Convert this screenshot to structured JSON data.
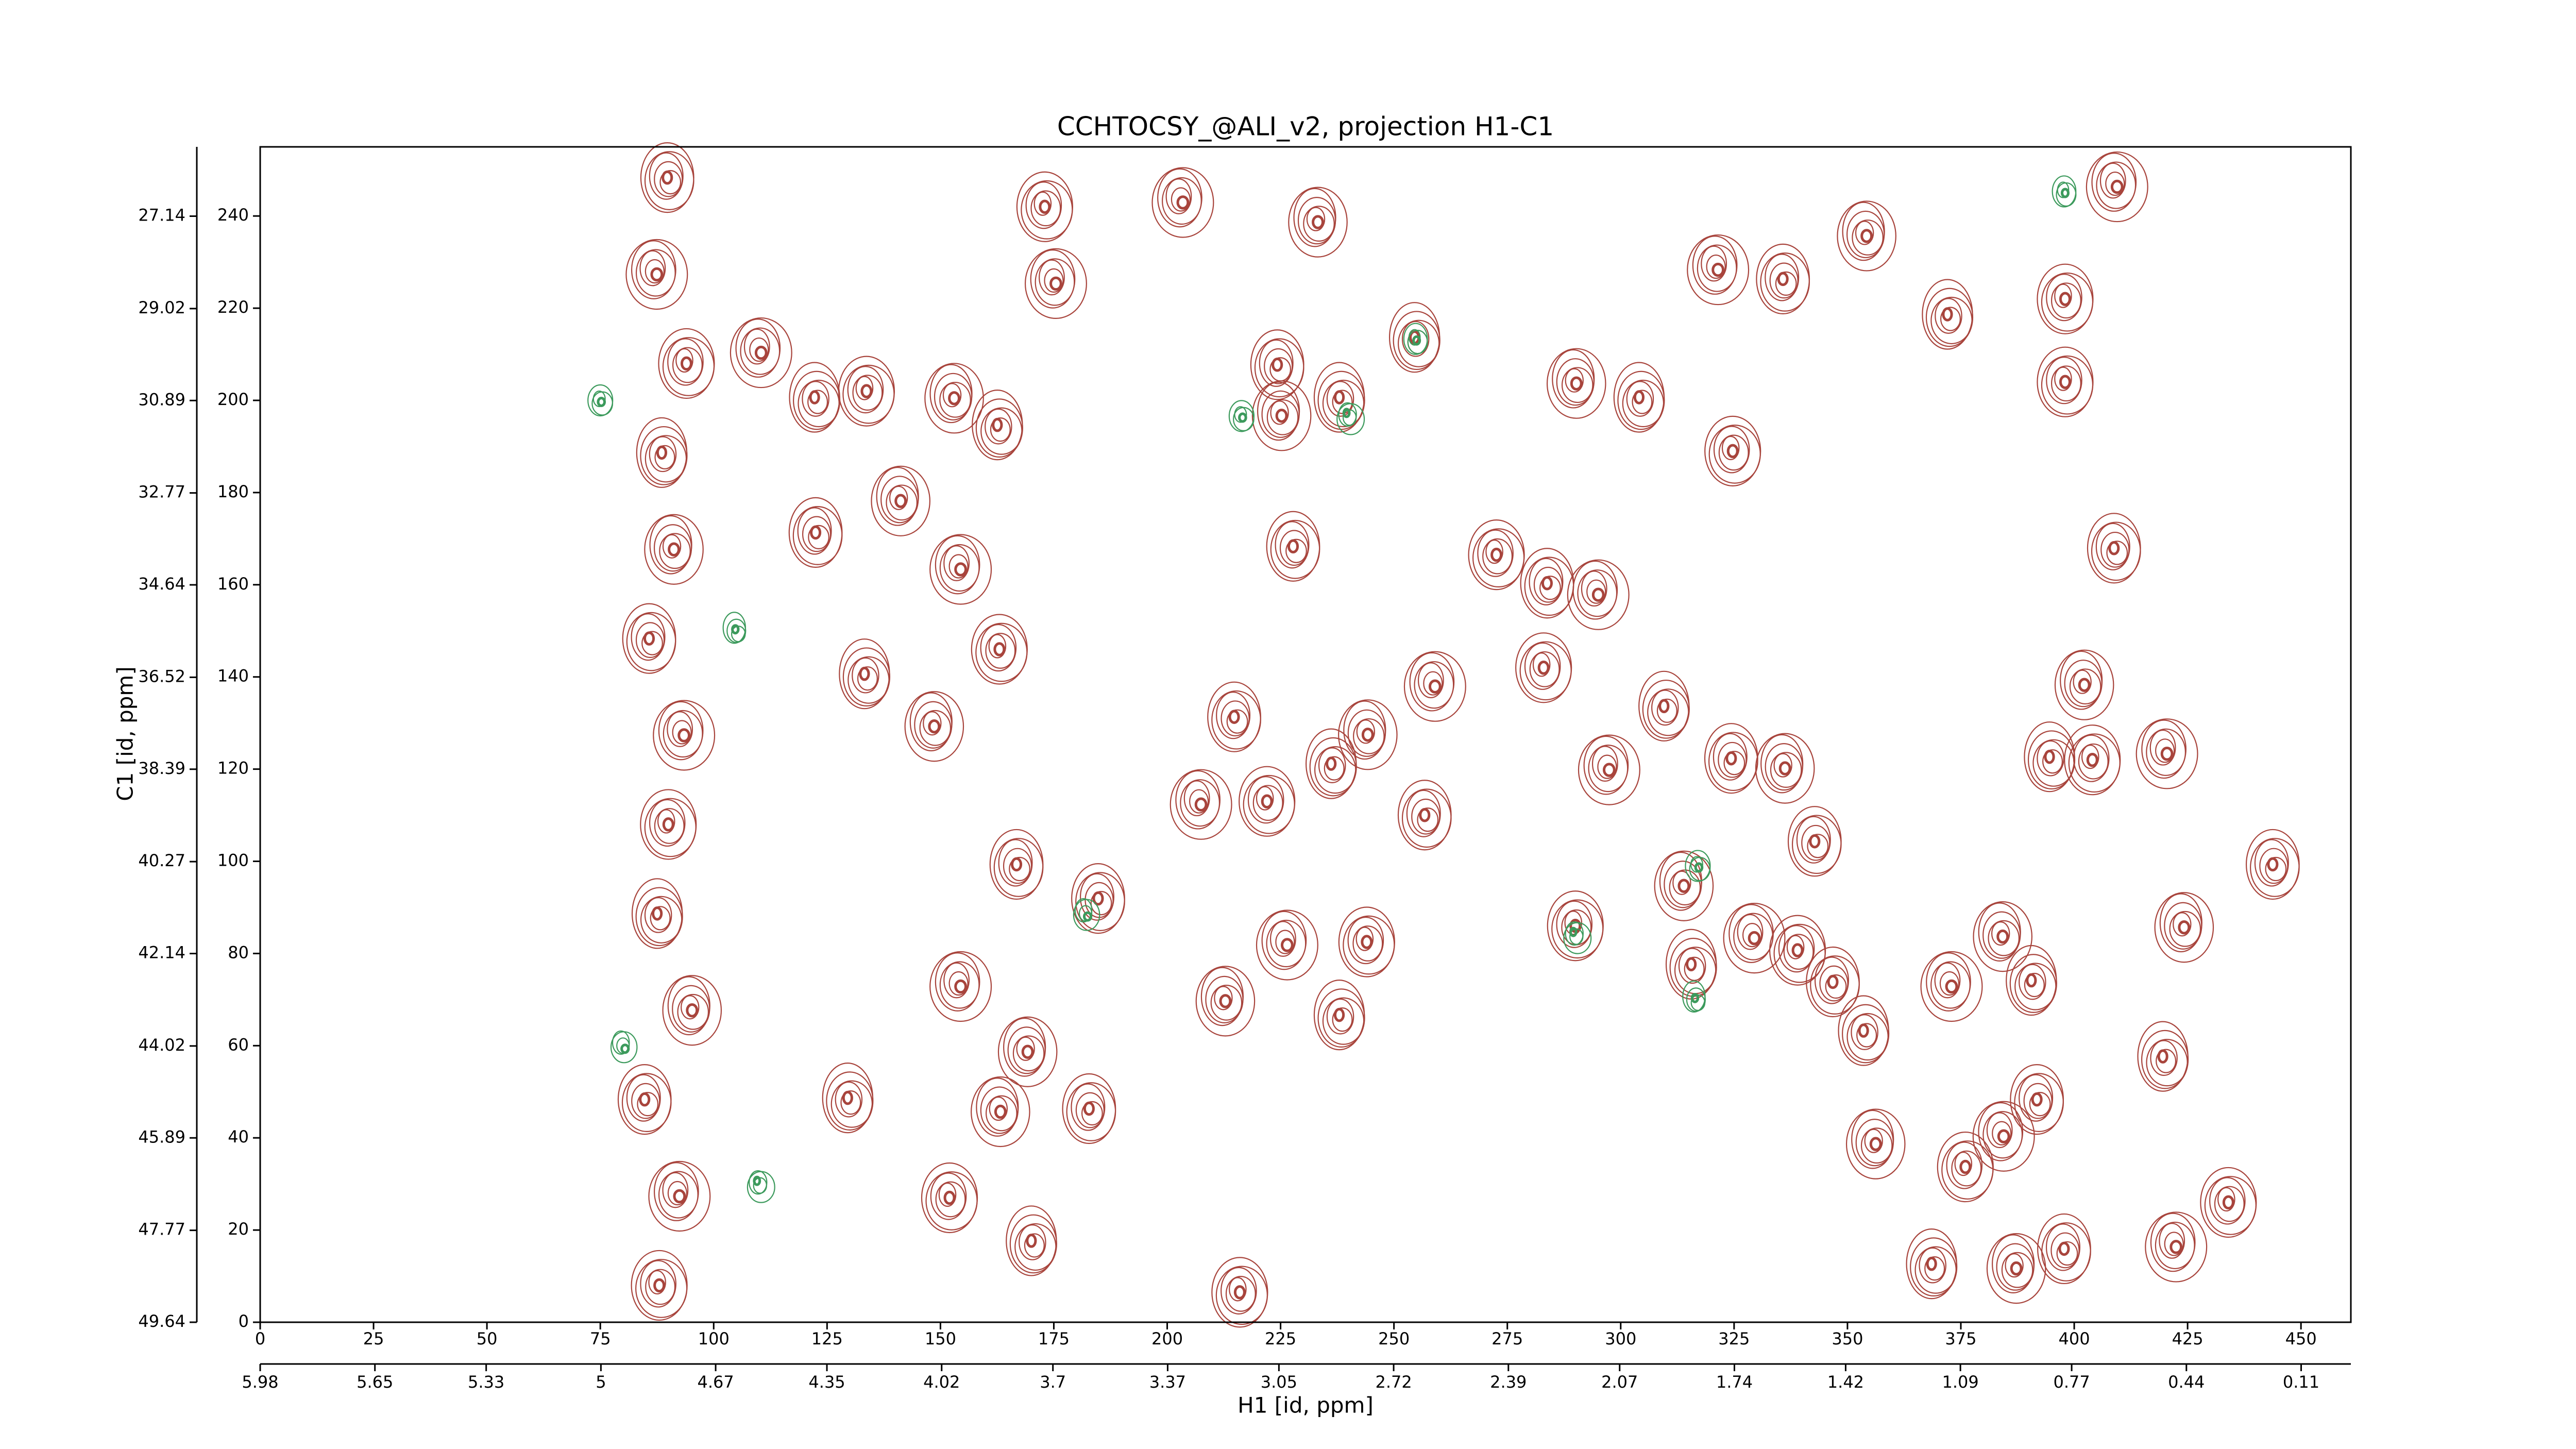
{
  "chart_data": {
    "type": "contour",
    "title": "CCHTOCSY_@ALI_v2, projection H1-C1",
    "xlabel": "H1 [id, ppm]",
    "ylabel": "C1 [id, ppm]",
    "xlim": [
      0,
      461
    ],
    "xticks": [
      0,
      25,
      50,
      75,
      100,
      125,
      150,
      175,
      200,
      225,
      250,
      275,
      300,
      325,
      350,
      375,
      400,
      425,
      450
    ],
    "ylim": [
      0,
      255
    ],
    "yticks": [
      0,
      20,
      40,
      60,
      80,
      100,
      120,
      140,
      160,
      180,
      200,
      220,
      240
    ],
    "x2lim": [
      5.98,
      -0.033
    ],
    "x2ticks": [
      5.98,
      5.65,
      5.33,
      5.0,
      4.67,
      4.35,
      4.02,
      3.7,
      3.37,
      3.05,
      2.72,
      2.39,
      2.07,
      1.74,
      1.42,
      1.09,
      0.77,
      0.44,
      0.11
    ],
    "y2lim": [
      49.64,
      25.73
    ],
    "y2ticks": [
      49.64,
      47.77,
      45.89,
      44.02,
      42.14,
      40.27,
      38.39,
      36.52,
      34.64,
      32.77,
      30.89,
      29.02,
      27.14
    ],
    "series": [
      {
        "color": "#a8443c",
        "x": [
          152.8,
          163,
          173,
          175,
          224.5,
          233,
          238.4,
          272.6,
          294.6,
          284,
          290,
          304.5,
          324.7,
          321,
          336,
          354,
          372.5,
          398,
          409,
          409,
          402,
          395,
          404,
          420,
          444,
          424,
          420,
          434,
          422,
          398,
          387,
          369,
          376,
          384,
          392,
          356,
          354,
          339,
          329,
          343,
          313.7,
          316,
          290,
          297,
          324.6,
          336,
          310,
          283,
          258.6,
          257,
          244,
          236.6,
          222,
          207,
          215,
          212.6,
          238.4,
          244,
          226,
          183,
          163,
          130,
          152,
          154,
          167,
          148.4,
          133.7,
          163,
          154,
          122.7,
          141,
          122.7,
          133.7,
          110,
          185,
          169,
          170.5,
          216,
          203,
          228,
          384,
          391,
          398,
          372.5,
          347,
          225,
          255,
          88,
          92,
          85,
          95,
          88,
          90,
          93,
          86,
          91,
          89,
          94,
          87,
          90
        ],
        "y": [
          200.8,
          194,
          242,
          226,
          207.4,
          239,
          200,
          166.5,
          158.5,
          160,
          204,
          200,
          189,
          229,
          226,
          236,
          218,
          204,
          247,
          167.6,
          138.6,
          122,
          122,
          124,
          99,
          86,
          57,
          26,
          17,
          15.6,
          12,
          12,
          33.7,
          41,
          48,
          39,
          62.6,
          80.7,
          84,
          104,
          95,
          77,
          86,
          120.5,
          122,
          120.5,
          133,
          142,
          138.6,
          109.7,
          127.8,
          120.5,
          113,
          113,
          131,
          70,
          66,
          82.5,
          82.5,
          46,
          46,
          48,
          27,
          73.5,
          99,
          129.6,
          140,
          146,
          164,
          171,
          178.5,
          200,
          202,
          211,
          91.6,
          59,
          17,
          6.5,
          243.6,
          168,
          84,
          73.5,
          222,
          73.5,
          73.5,
          197,
          213,
          8,
          28,
          48,
          68,
          88,
          108,
          128,
          148,
          168,
          188,
          208,
          228,
          248
        ]
      },
      {
        "color": "#3c9a5c",
        "x": [
          216.4,
          240,
          255,
          182,
          316.6,
          317,
          290,
          398,
          80,
          105,
          75,
          110
        ],
        "y": [
          196.6,
          196.6,
          213,
          88.7,
          70,
          99,
          84,
          245,
          60,
          150,
          200,
          30
        ]
      }
    ]
  }
}
